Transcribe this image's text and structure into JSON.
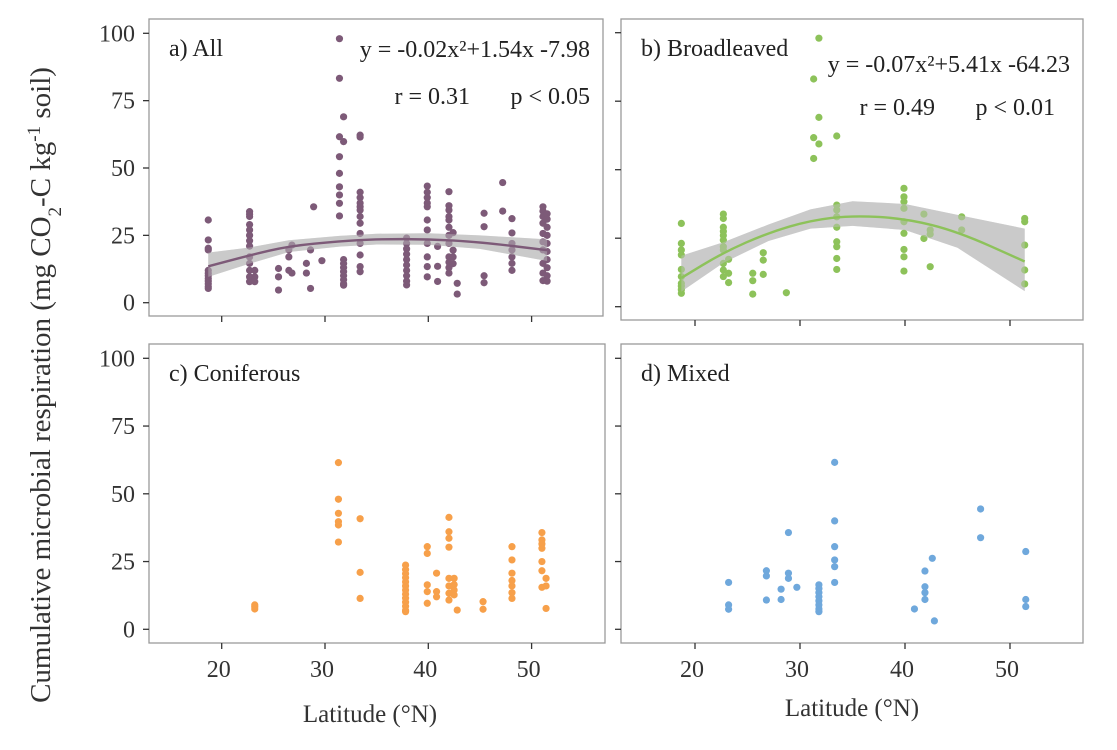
{
  "chart_data": {
    "type": "scatter",
    "xlabel": "Latitude (°N)",
    "ylabel": {
      "pre": "Cumulative microbial respiration (mg CO",
      "sub": "2",
      "mid": "-C kg",
      "sup": "-1",
      "post": " soil)"
    },
    "xlim": [
      13.2,
      57.1
    ],
    "ylim": [
      -5,
      105
    ],
    "xticks": [
      "20",
      "30",
      "40",
      "50"
    ],
    "yticks": [
      "0",
      "25",
      "50",
      "75",
      "100"
    ],
    "grid": false,
    "panels": [
      {
        "label": "a)  All",
        "color": "#7d5a78",
        "equation": "y = -0.02x²+1.54x -7.98",
        "r": "r = 0.31",
        "p": "p < 0.05",
        "fit": [
          [
            18.7,
            13.5
          ],
          [
            22.7,
            17.6
          ],
          [
            26.5,
            21
          ],
          [
            31.4,
            22.8
          ],
          [
            35,
            23.6
          ],
          [
            40,
            23.6
          ],
          [
            45,
            22.5
          ],
          [
            51.5,
            19.5
          ]
        ],
        "ci": [
          [
            18.7,
            9.6,
            18.6
          ],
          [
            22.7,
            14.5,
            20.5
          ],
          [
            26.5,
            18.8,
            23.2
          ],
          [
            31.4,
            20.8,
            24.8
          ],
          [
            35,
            21.6,
            25.6
          ],
          [
            40,
            21.5,
            25.8
          ],
          [
            45,
            20,
            25
          ],
          [
            51.5,
            15.5,
            23.5
          ]
        ],
        "points": [
          {
            "x": 18.7,
            "y": [
              30.7,
              23.3,
              20.2,
              19.6,
              12,
              11,
              10,
              9,
              8,
              7,
              6,
              5.3
            ]
          },
          {
            "x": 22.7,
            "y": [
              33.8,
              32.9,
              32,
              29,
              27,
              25,
              23,
              21,
              17,
              14.6,
              12,
              9.6,
              7.8
            ]
          },
          {
            "x": 23.2,
            "y": [
              12,
              9.6,
              7.8
            ]
          },
          {
            "x": 25.5,
            "y": [
              12.7,
              9.6,
              4.7
            ]
          },
          {
            "x": 26.5,
            "y": [
              19.6,
              17,
              12
            ]
          },
          {
            "x": 26.8,
            "y": [
              21.4,
              11
            ]
          },
          {
            "x": 28.2,
            "y": [
              14.6,
              11
            ]
          },
          {
            "x": 28.6,
            "y": [
              19.6,
              5.3
            ]
          },
          {
            "x": 28.9,
            "y": [
              35.6
            ]
          },
          {
            "x": 29.7,
            "y": [
              15.6
            ]
          },
          {
            "x": 31.4,
            "y": [
              98,
              83.3,
              61.6,
              54.2,
              48,
              43,
              40,
              36.9,
              32.2
            ]
          },
          {
            "x": 31.8,
            "y": [
              69,
              59.8,
              16,
              14.5,
              13,
              11.5,
              10,
              8.5,
              7,
              6.5
            ]
          },
          {
            "x": 33.4,
            "y": [
              62.2,
              61.5,
              41,
              39,
              37,
              35.6,
              34.4,
              32,
              29.5,
              25.7,
              22,
              17.7,
              13.4,
              11.5
            ]
          },
          {
            "x": 37.9,
            "y": [
              24,
              22,
              20,
              18,
              16,
              14,
              12,
              10,
              8,
              6.6
            ]
          },
          {
            "x": 39.9,
            "y": [
              43.3,
              41,
              39,
              37,
              35.6,
              30.7,
              27,
              22,
              17,
              13.4,
              9.6
            ]
          },
          {
            "x": 40.9,
            "y": [
              20.9,
              13.5,
              7.9
            ]
          },
          {
            "x": 42.0,
            "y": [
              41.2,
              36,
              34.4,
              32,
              30.7,
              28,
              25,
              22,
              17,
              15,
              13,
              11
            ]
          },
          {
            "x": 42.4,
            "y": [
              26,
              19.5,
              17,
              14.5
            ]
          },
          {
            "x": 42.8,
            "y": [
              7.2,
              3.2
            ]
          },
          {
            "x": 45.4,
            "y": [
              33.2,
              28.2,
              10,
              7.4
            ]
          },
          {
            "x": 47.2,
            "y": [
              44.6,
              34
            ]
          },
          {
            "x": 48.1,
            "y": [
              31.2,
              25.9,
              22,
              19.6,
              17,
              14.6,
              12
            ]
          },
          {
            "x": 51.1,
            "y": [
              35.6,
              34,
              32,
              29.5,
              25.7,
              22.6,
              19.6,
              14.6,
              11,
              8.2
            ]
          },
          {
            "x": 51.5,
            "y": [
              33,
              31,
              28,
              25,
              22,
              19,
              16,
              13,
              10,
              8
            ]
          }
        ]
      },
      {
        "label": "b) Broadleaved",
        "color": "#8dc25a",
        "equation": "y = -0.07x²+5.41x -64.23",
        "r": "r = 0.49",
        "p": "p < 0.01",
        "fit": [
          [
            18.7,
            10.5
          ],
          [
            22.7,
            19.8
          ],
          [
            27,
            27
          ],
          [
            31,
            31.5
          ],
          [
            35,
            33.3
          ],
          [
            40,
            32.2
          ],
          [
            45,
            27.5
          ],
          [
            51.4,
            16.5
          ]
        ],
        "ci": [
          [
            18.7,
            5.5,
            18.6
          ],
          [
            22.7,
            16,
            23.5
          ],
          [
            27,
            24,
            30
          ],
          [
            31,
            28.5,
            35.5
          ],
          [
            35,
            29.5,
            38.5
          ],
          [
            40,
            28,
            37.5
          ],
          [
            45,
            21.5,
            33.5
          ],
          [
            51.4,
            5.7,
            28.5
          ]
        ],
        "points": [
          {
            "x": 18.7,
            "y": [
              30.4,
              23.1,
              20.7,
              18.9,
              13.6,
              11,
              8.5,
              7.5,
              6.2,
              4.9
            ]
          },
          {
            "x": 22.7,
            "y": [
              33.8,
              32.2,
              29,
              27.5,
              26,
              24.3,
              21.9,
              20.7,
              15.8,
              13.4,
              11
            ]
          },
          {
            "x": 23.2,
            "y": [
              17.3,
              12.2,
              8.8
            ]
          },
          {
            "x": 25.5,
            "y": [
              12.2,
              9.5,
              4.6
            ]
          },
          {
            "x": 26.5,
            "y": [
              19.7,
              17,
              11.8
            ]
          },
          {
            "x": 28.7,
            "y": [
              5.1
            ]
          },
          {
            "x": 31.3,
            "y": [
              83.1,
              61.7,
              54.1
            ]
          },
          {
            "x": 31.8,
            "y": [
              98,
              69.1,
              59.4
            ]
          },
          {
            "x": 33.5,
            "y": [
              62.3,
              37.1,
              35.3,
              32.8,
              29,
              23.7,
              21.9,
              17.6,
              13.6
            ]
          },
          {
            "x": 39.9,
            "y": [
              43.2,
              40.1,
              38.3,
              35.9,
              31,
              26.8,
              20.9,
              18.2,
              13
            ]
          },
          {
            "x": 41.8,
            "y": [
              33.8,
              24.9
            ]
          },
          {
            "x": 42.4,
            "y": [
              28,
              26.5,
              14.6
            ]
          },
          {
            "x": 45.4,
            "y": [
              32.8,
              28
            ]
          },
          {
            "x": 51.4,
            "y": [
              32.2,
              31,
              22.5,
              13.4,
              8.3
            ]
          }
        ]
      },
      {
        "label": "c) Coniferous",
        "color": "#f7a04a",
        "points": [
          {
            "x": 23.2,
            "y": [
              9,
              8.3,
              7.5
            ]
          },
          {
            "x": 31.3,
            "y": [
              61.5,
              48,
              42.8,
              39.7,
              38.5,
              32.2
            ]
          },
          {
            "x": 33.4,
            "y": [
              40.8,
              21,
              11.4
            ]
          },
          {
            "x": 37.8,
            "y": [
              23.7,
              22,
              20.5,
              19,
              17.5,
              16,
              14.5,
              13,
              11.5,
              10,
              8.5,
              7,
              6.5
            ]
          },
          {
            "x": 39.9,
            "y": [
              30.5,
              28,
              16.4,
              13.9,
              9.6
            ]
          },
          {
            "x": 40.8,
            "y": [
              20.7,
              13.9,
              12
            ]
          },
          {
            "x": 42.0,
            "y": [
              41.3,
              36,
              33.6,
              30.3,
              18.8,
              16,
              13.3,
              10.8
            ]
          },
          {
            "x": 42.5,
            "y": [
              18.8,
              16.5,
              14.5,
              12.7
            ]
          },
          {
            "x": 42.8,
            "y": [
              7.1
            ]
          },
          {
            "x": 45.3,
            "y": [
              10.2,
              7.4
            ]
          },
          {
            "x": 48.1,
            "y": [
              30.5,
              25.6,
              20.7,
              18,
              16,
              13.5,
              11.4
            ]
          },
          {
            "x": 51.0,
            "y": [
              35.7,
              33,
              31.5,
              29.9,
              25,
              21.6,
              15.5
            ]
          },
          {
            "x": 51.4,
            "y": [
              18.8,
              16,
              7.7
            ]
          }
        ]
      },
      {
        "label": "d) Mixed",
        "color": "#6fa8dc",
        "points": [
          {
            "x": 23.2,
            "y": [
              17.3,
              9,
              7.4
            ]
          },
          {
            "x": 26.8,
            "y": [
              21.6,
              19.7,
              10.8
            ]
          },
          {
            "x": 28.2,
            "y": [
              14.8,
              11
            ]
          },
          {
            "x": 28.9,
            "y": [
              35.7,
              20.7,
              18.8
            ]
          },
          {
            "x": 29.7,
            "y": [
              15.5
            ]
          },
          {
            "x": 31.8,
            "y": [
              16.4,
              15,
              13.5,
              12,
              10.5,
              9,
              7.5,
              6.5
            ]
          },
          {
            "x": 33.3,
            "y": [
              61.6,
              40,
              30.5,
              25.6,
              23.1,
              17.3
            ]
          },
          {
            "x": 40.9,
            "y": [
              7.5
            ]
          },
          {
            "x": 41.9,
            "y": [
              21.5,
              15.7,
              13.5,
              11
            ]
          },
          {
            "x": 42.6,
            "y": [
              26.2
            ]
          },
          {
            "x": 42.8,
            "y": [
              3.1
            ]
          },
          {
            "x": 47.2,
            "y": [
              44.4,
              33.8
            ]
          },
          {
            "x": 51.5,
            "y": [
              28.7,
              11,
              8.4
            ]
          }
        ]
      }
    ]
  }
}
